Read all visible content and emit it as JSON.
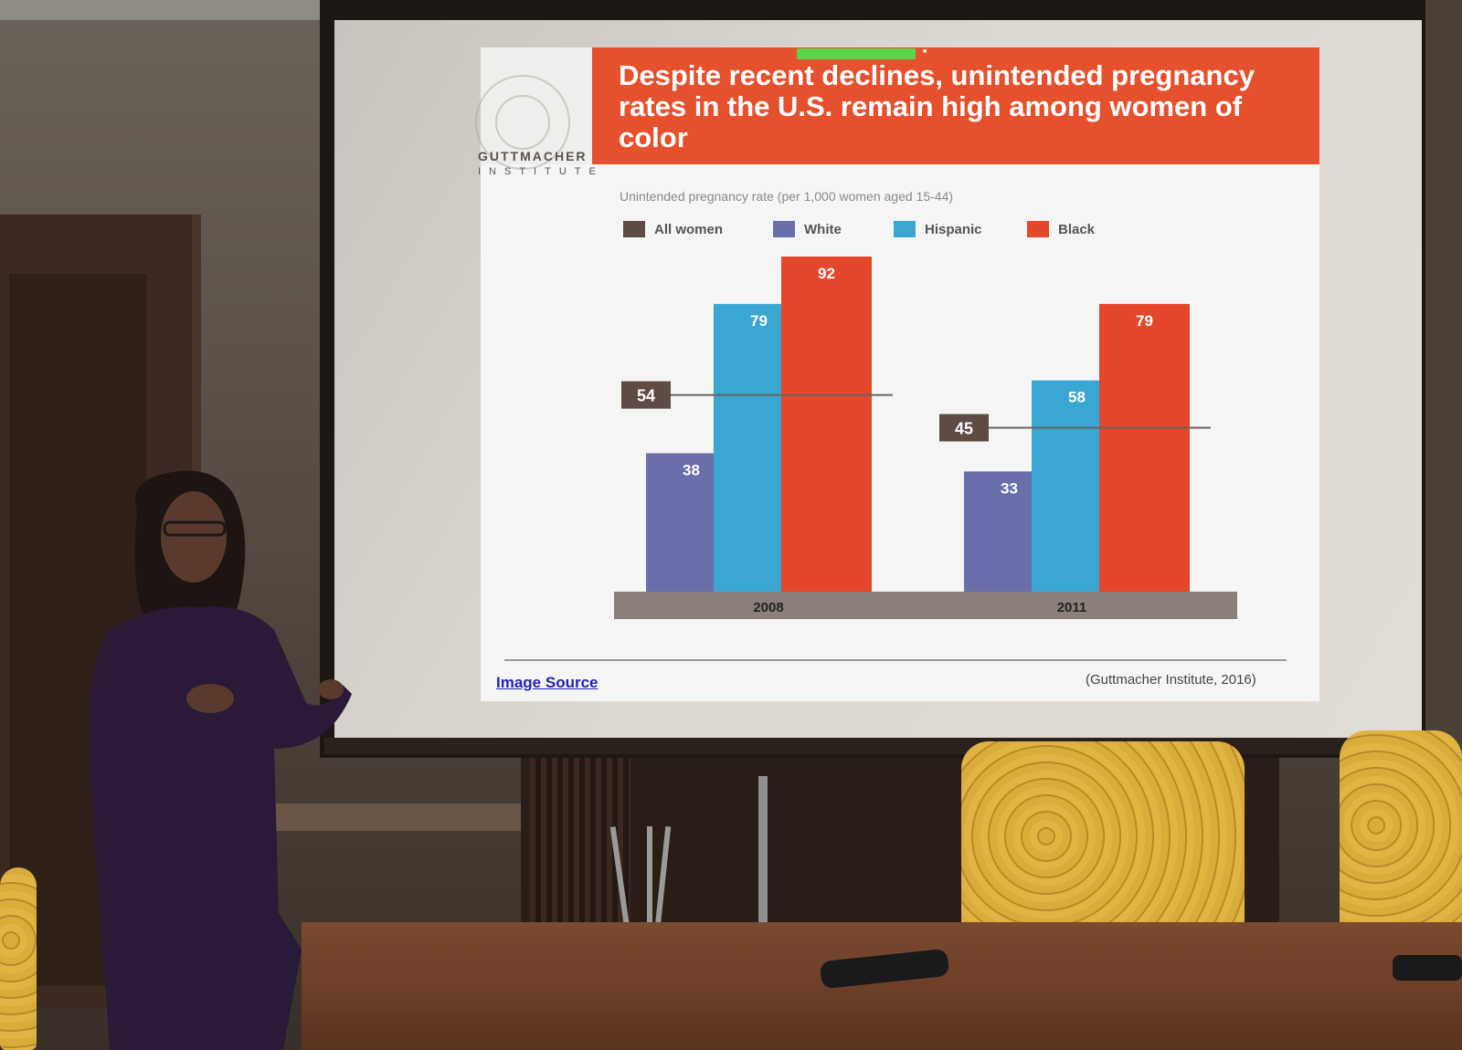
{
  "slide": {
    "logo_name": "GUTTMACHER",
    "logo_sub": "INSTITUTE",
    "title": "Despite recent declines, unintended pregnancy rates in the U.S. remain high among women of color",
    "subtitle": "Unintended pregnancy rate (per 1,000 women aged 15-44)",
    "image_source_link": "Image Source",
    "citation": "(Guttmacher Institute, 2016)"
  },
  "colors": {
    "all_women": "#5e4b44",
    "white": "#6a6eaa",
    "hispanic": "#3aa7d2",
    "black": "#e4472a",
    "baseline": "#8a7f7a",
    "title_band": "#e5502d"
  },
  "chart_data": {
    "type": "bar",
    "title": "Despite recent declines, unintended pregnancy rates in the U.S. remain high among women of color",
    "ylabel": "Unintended pregnancy rate (per 1,000 women aged 15-44)",
    "categories": [
      "2008",
      "2011"
    ],
    "series": [
      {
        "name": "White",
        "values": [
          38,
          33
        ]
      },
      {
        "name": "Hispanic",
        "values": [
          79,
          58
        ]
      },
      {
        "name": "Black",
        "values": [
          92,
          79
        ]
      }
    ],
    "reference": {
      "name": "All women",
      "values": [
        54,
        45
      ]
    },
    "ylim": [
      0,
      92
    ],
    "legend": [
      "All women",
      "White",
      "Hispanic",
      "Black"
    ],
    "legend_position": "top-left",
    "grid": false
  }
}
